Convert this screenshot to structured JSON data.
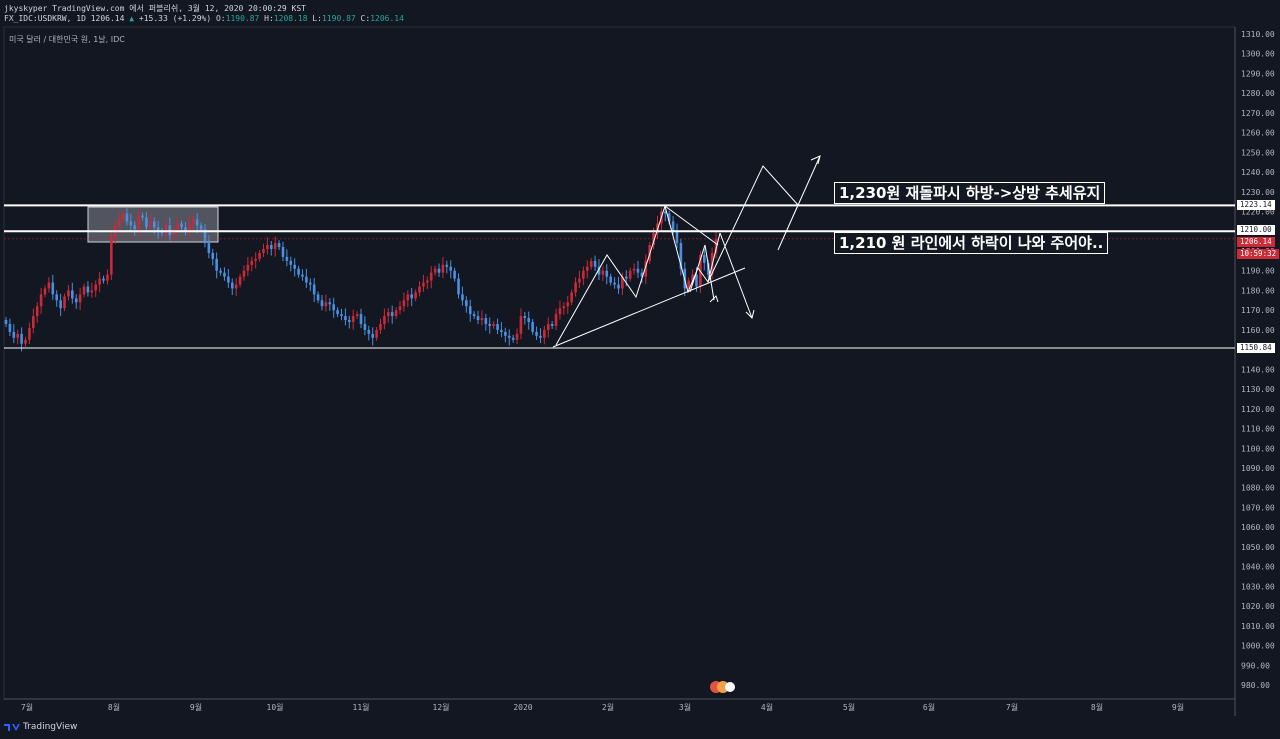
{
  "header": {
    "line1": "jkyskyper TradingView.com 에서 퍼블리쉬, 3월 12, 2020 20:00:29 KST",
    "symbol": "FX_IDC:USDKRW, 1D 1206.14",
    "change_arrow": "▲",
    "change": "+15.33 (+1.29%)",
    "o_label": "O:",
    "o_value": "1190.87",
    "h_label": "H:",
    "h_value": "1208.18",
    "l_label": "L:",
    "l_value": "1190.87",
    "c_label": "C:",
    "c_value": "1206.14"
  },
  "subtitle": "미국 달러 / 대한민국 원, 1날, IDC",
  "annotations": {
    "note1": "1,230원 재돌파시 하방->상방 추세유지",
    "note2": "1,210 원 라인에서 하락이 나와 주어야.."
  },
  "price_tags": {
    "level_1223": "1223.14",
    "level_1210": "1210.00",
    "last_price": "1206.14",
    "countdown": "10:59:32",
    "level_1150": "1150.84"
  },
  "footer": {
    "brand": "TradingView"
  },
  "colors": {
    "background": "#131722",
    "up": "#4a90e2",
    "down": "#cc2a36",
    "lines": "#ffffff",
    "grid_text": "#b2b5be"
  },
  "chart_data": {
    "type": "candlestick",
    "title": "미국 달러 / 대한민국 원, 1날, IDC",
    "symbol": "FX_IDC:USDKRW",
    "ylim": [
      975,
      1312
    ],
    "y_ticks": [
      980,
      990,
      1000,
      1010,
      1020,
      1030,
      1040,
      1050,
      1060,
      1070,
      1080,
      1090,
      1100,
      1110,
      1120,
      1130,
      1140,
      1150,
      1160,
      1170,
      1180,
      1190,
      1200,
      1210,
      1220,
      1230,
      1240,
      1250,
      1260,
      1270,
      1280,
      1290,
      1300,
      1310
    ],
    "x_ticks": [
      "7월",
      "8월",
      "9월",
      "10월",
      "11월",
      "12월",
      "2020",
      "2월",
      "3월",
      "4월",
      "5월",
      "6월",
      "7월",
      "8월",
      "9월"
    ],
    "horizontal_levels": [
      1223.14,
      1210.0,
      1150.84
    ],
    "series": [
      {
        "name": "USDKRW",
        "close": [
          1163,
          1159,
          1156,
          1158,
          1153,
          1155,
          1161,
          1167,
          1172,
          1178,
          1181,
          1184,
          1178,
          1175,
          1171,
          1177,
          1180,
          1176,
          1174,
          1178,
          1182,
          1179,
          1180,
          1183,
          1186,
          1185,
          1188,
          1207,
          1213,
          1216,
          1219,
          1215,
          1213,
          1211,
          1218,
          1217,
          1212,
          1215,
          1212,
          1210,
          1209,
          1213,
          1208,
          1211,
          1214,
          1212,
          1210,
          1214,
          1216,
          1213,
          1211,
          1204,
          1199,
          1196,
          1190,
          1189,
          1187,
          1184,
          1181,
          1183,
          1187,
          1190,
          1193,
          1195,
          1196,
          1199,
          1201,
          1203,
          1201,
          1204,
          1202,
          1197,
          1195,
          1193,
          1191,
          1188,
          1187,
          1184,
          1183,
          1178,
          1175,
          1172,
          1174,
          1173,
          1170,
          1168,
          1167,
          1165,
          1164,
          1167,
          1168,
          1163,
          1160,
          1158,
          1156,
          1160,
          1163,
          1167,
          1169,
          1167,
          1170,
          1172,
          1175,
          1178,
          1176,
          1179,
          1182,
          1184,
          1185,
          1189,
          1191,
          1189,
          1193,
          1192,
          1190,
          1186,
          1178,
          1175,
          1172,
          1168,
          1167,
          1165,
          1166,
          1163,
          1162,
          1163,
          1160,
          1159,
          1157,
          1156,
          1155,
          1158,
          1167,
          1166,
          1164,
          1159,
          1157,
          1156,
          1160,
          1163,
          1162,
          1168,
          1171,
          1172,
          1174,
          1179,
          1184,
          1186,
          1190,
          1192,
          1195,
          1192,
          1188,
          1190,
          1187,
          1184,
          1183,
          1181,
          1187,
          1186,
          1190,
          1191,
          1189,
          1187,
          1195,
          1203,
          1209,
          1214,
          1220,
          1219,
          1215,
          1210,
          1204,
          1191,
          1181,
          1185,
          1188,
          1182,
          1198,
          1194,
          1188,
          1199,
          1206
        ]
      }
    ]
  }
}
